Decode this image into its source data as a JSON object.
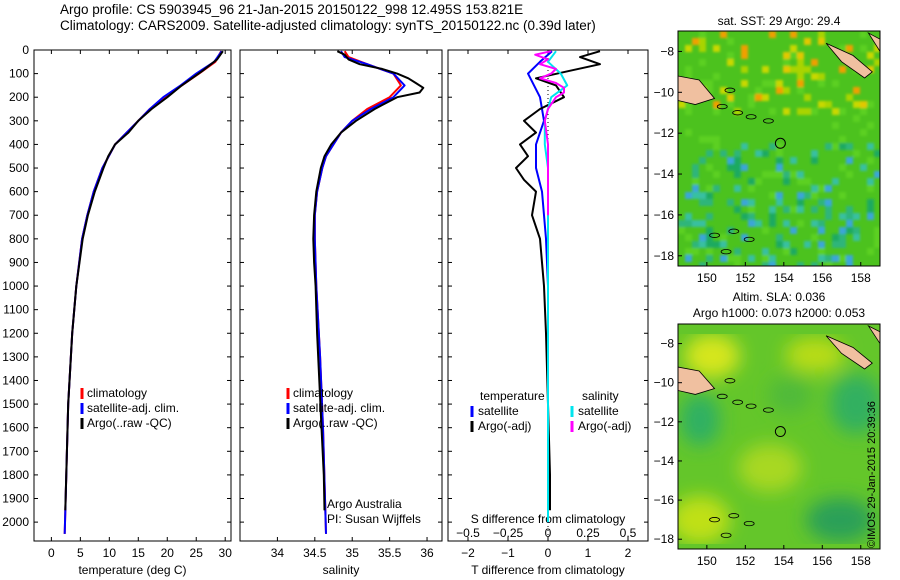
{
  "header": {
    "line1": "Argo profile: CS 5903945_96 21-Jan-2015 20150122_998 12.495S 153.821E",
    "line2": "Climatology: CARS2009. Satellite-adjusted climatology: synTS_20150122.nc (0.39d later)"
  },
  "colors": {
    "climatology": "#ff0000",
    "satellite": "#0000ff",
    "argo": "#000000",
    "sal_satellite": "#00e5ee",
    "sal_argo": "#ff00ff"
  },
  "credit": "©IMOS 29-Jan-2015 20:39:36",
  "chart_data": [
    {
      "type": "line",
      "xlabel": "temperature (deg C)",
      "ylabel": "",
      "xlim": [
        -3,
        31
      ],
      "ylim": [
        2080,
        0
      ],
      "x_ticks": [
        0,
        5,
        10,
        15,
        20,
        25,
        30
      ],
      "y_ticks": [
        0,
        100,
        200,
        300,
        400,
        500,
        600,
        700,
        800,
        900,
        1000,
        1100,
        1200,
        1300,
        1400,
        1500,
        1600,
        1700,
        1800,
        1900,
        2000
      ],
      "legend": [
        "climatology",
        "satellite-adj. clim.",
        "Argo(..raw -QC)"
      ],
      "legend_position": "bottom-right",
      "series": [
        {
          "name": "climatology",
          "color": "#ff0000",
          "depth": [
            5,
            50,
            100,
            150,
            200,
            250,
            300,
            350,
            400,
            500,
            600,
            700,
            800,
            1000,
            1200,
            1500,
            2050
          ],
          "values": [
            29.3,
            28.3,
            25.5,
            22.5,
            19.5,
            17.0,
            15.0,
            13.0,
            11.0,
            8.8,
            7.3,
            6.2,
            5.3,
            4.3,
            3.6,
            2.9,
            2.3
          ]
        },
        {
          "name": "satellite-adj. clim.",
          "color": "#0000ff",
          "depth": [
            5,
            50,
            100,
            150,
            200,
            250,
            300,
            350,
            400,
            500,
            600,
            700,
            800,
            1000,
            1200,
            1500,
            2050
          ],
          "values": [
            29.4,
            28.1,
            25.0,
            22.3,
            19.3,
            17.0,
            15.0,
            13.0,
            11.0,
            8.8,
            7.3,
            6.2,
            5.3,
            4.3,
            3.6,
            2.9,
            2.3
          ]
        },
        {
          "name": "Argo(..raw -QC)",
          "color": "#000000",
          "depth": [
            5,
            40,
            90,
            150,
            200,
            250,
            300,
            350,
            400,
            450,
            500,
            600,
            700,
            800,
            1000,
            1200,
            1500,
            1950
          ],
          "values": [
            29.6,
            28.6,
            26.0,
            22.5,
            20.0,
            17.3,
            15.0,
            13.3,
            11.0,
            9.8,
            9.0,
            7.5,
            6.3,
            5.4,
            4.3,
            3.6,
            2.9,
            2.4
          ]
        }
      ]
    },
    {
      "type": "line",
      "xlabel": "salinity",
      "ylabel": "",
      "xlim": [
        33.5,
        36.2
      ],
      "ylim": [
        2080,
        0
      ],
      "x_ticks": [
        34,
        34.5,
        35,
        35.5,
        36
      ],
      "y_ticks": [
        0,
        100,
        200,
        300,
        400,
        500,
        600,
        700,
        800,
        900,
        1000,
        1100,
        1200,
        1300,
        1400,
        1500,
        1600,
        1700,
        1800,
        1900,
        2000
      ],
      "legend": [
        "climatology",
        "satellite-adj. clim.",
        "Argo(..raw -QC)"
      ],
      "legend_position": "bottom-right",
      "annotations": [
        "Argo Australia",
        "PI: Susan Wijffels"
      ],
      "series": [
        {
          "name": "climatology",
          "color": "#ff0000",
          "depth": [
            5,
            30,
            60,
            100,
            150,
            200,
            250,
            300,
            350,
            400,
            450,
            500,
            600,
            700,
            800,
            1000,
            1300,
            1600,
            2050
          ],
          "values": [
            34.9,
            34.95,
            35.2,
            35.55,
            35.65,
            35.5,
            35.2,
            35.0,
            34.85,
            34.75,
            34.65,
            34.6,
            34.53,
            34.5,
            34.5,
            34.52,
            34.57,
            34.61,
            34.65
          ]
        },
        {
          "name": "satellite-adj. clim.",
          "color": "#0000ff",
          "depth": [
            5,
            30,
            60,
            100,
            150,
            200,
            250,
            300,
            350,
            400,
            450,
            500,
            600,
            700,
            800,
            1000,
            1300,
            1600,
            2050
          ],
          "values": [
            34.85,
            34.9,
            35.2,
            35.55,
            35.7,
            35.55,
            35.25,
            35.0,
            34.85,
            34.75,
            34.65,
            34.6,
            34.53,
            34.5,
            34.5,
            34.52,
            34.57,
            34.61,
            34.65
          ]
        },
        {
          "name": "Argo(..raw -QC)",
          "color": "#000000",
          "depth": [
            5,
            20,
            40,
            60,
            80,
            100,
            120,
            140,
            160,
            180,
            200,
            250,
            300,
            350,
            400,
            450,
            500,
            600,
            700,
            800,
            900,
            1000,
            1200,
            1400,
            1600,
            1800,
            1950
          ],
          "values": [
            34.8,
            34.9,
            34.95,
            35.1,
            35.4,
            35.6,
            35.75,
            35.85,
            35.95,
            35.9,
            35.6,
            35.3,
            35.05,
            34.85,
            34.72,
            34.63,
            34.58,
            34.52,
            34.49,
            34.48,
            34.49,
            34.51,
            34.53,
            34.56,
            34.59,
            34.62,
            34.63
          ]
        }
      ]
    },
    {
      "type": "line",
      "xlabel": "T difference from climatology",
      "x2label": "S difference from climatology",
      "ylabel": "",
      "xlim": [
        -2.5,
        2.5
      ],
      "x2lim": [
        -0.625,
        0.625
      ],
      "ylim": [
        2080,
        0
      ],
      "x_ticks": [
        -2,
        -1,
        0,
        1,
        2
      ],
      "x2_ticks": [
        -0.5,
        -0.25,
        0,
        0.25,
        0.5
      ],
      "y_ticks": [
        0,
        100,
        200,
        300,
        400,
        500,
        600,
        700,
        800,
        900,
        1000,
        1100,
        1200,
        1300,
        1400,
        1500,
        1600,
        1700,
        1800,
        1900,
        2000
      ],
      "legend": [
        "temperature",
        "satellite",
        "Argo(-adj)",
        "salinity",
        "satellite",
        "Argo(-adj)"
      ],
      "legend_position": "bottom",
      "series": [
        {
          "name": "satellite",
          "color": "#0000ff",
          "depth": [
            5,
            50,
            100,
            200,
            300,
            400,
            500,
            600,
            700,
            800,
            1000,
            1500,
            2000
          ],
          "values": [
            0.1,
            -0.2,
            -0.5,
            -0.2,
            -0.1,
            -0.3,
            -0.3,
            -0.15,
            -0.1,
            -0.05,
            0,
            0,
            0
          ]
        },
        {
          "name": "Argo(-adj)",
          "color": "#000000",
          "depth": [
            5,
            30,
            60,
            90,
            120,
            150,
            200,
            250,
            300,
            350,
            400,
            450,
            500,
            550,
            600,
            700,
            800,
            900,
            1000,
            1200,
            1500,
            1800,
            1950
          ],
          "values": [
            1.3,
            0.8,
            1.3,
            0.5,
            -0.3,
            0.2,
            0.4,
            -0.2,
            -0.6,
            -0.3,
            -0.7,
            -0.5,
            -0.8,
            -0.6,
            -0.3,
            -0.4,
            -0.2,
            -0.15,
            -0.1,
            -0.05,
            0,
            0.05,
            0.05
          ]
        },
        {
          "name": "satellite",
          "color": "#00e5ee",
          "depth": [
            5,
            50,
            100,
            150,
            200,
            300,
            400,
            500,
            700,
            1000,
            1500,
            2000
          ],
          "values": [
            0.05,
            0.0,
            0.08,
            0.12,
            0.02,
            -0.02,
            -0.02,
            0.0,
            0.0,
            0.0,
            0.0,
            0.0
          ]
        },
        {
          "name": "Argo(-adj)",
          "color": "#ff00ff",
          "depth": [
            5,
            20,
            40,
            60,
            80,
            100,
            120,
            140,
            160,
            180,
            200,
            250,
            300,
            400,
            500,
            600,
            700
          ],
          "values": [
            0.02,
            -0.08,
            0.0,
            -0.05,
            0.05,
            0.02,
            -0.05,
            0.05,
            0.1,
            0.1,
            0.05,
            0.0,
            -0.02,
            0.0,
            0.0,
            0.0,
            0.0
          ]
        }
      ]
    },
    {
      "type": "heatmap",
      "title": "sat. SST: 29 Argo: 29.4",
      "xlim": [
        148.5,
        159
      ],
      "ylim": [
        -18.5,
        -7
      ],
      "x_ticks": [
        150,
        152,
        154,
        156,
        158
      ],
      "y_ticks": [
        -8,
        -10,
        -12,
        -14,
        -16,
        -18
      ],
      "marker": {
        "lon": 153.821,
        "lat": -12.495
      }
    },
    {
      "type": "heatmap",
      "title": "Altim. SLA: 0.036",
      "subtitle": "Argo h1000: 0.073 h2000: 0.053",
      "xlim": [
        148.5,
        159
      ],
      "ylim": [
        -18.5,
        -7
      ],
      "x_ticks": [
        150,
        152,
        154,
        156,
        158
      ],
      "y_ticks": [
        -8,
        -10,
        -12,
        -14,
        -16,
        -18
      ],
      "marker": {
        "lon": 153.821,
        "lat": -12.495
      }
    }
  ]
}
